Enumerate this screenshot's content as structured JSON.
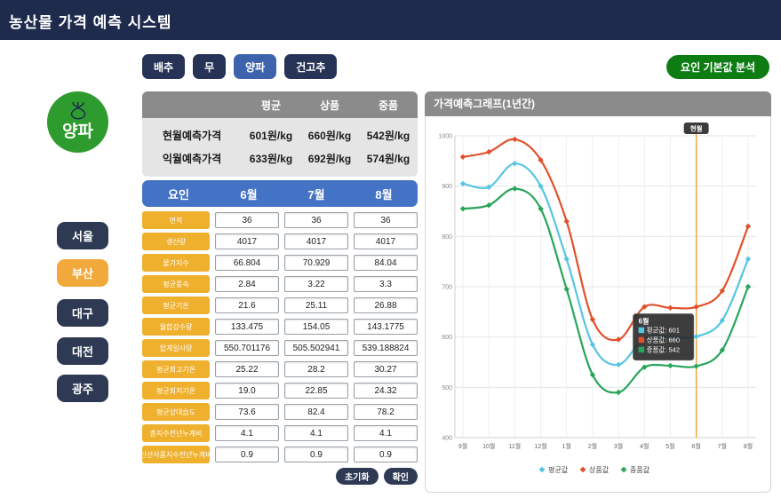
{
  "header": {
    "title": "농산물 가격 예측 시스템"
  },
  "tabs": [
    {
      "label": "배추",
      "active": false
    },
    {
      "label": "무",
      "active": false
    },
    {
      "label": "양파",
      "active": true
    },
    {
      "label": "건고추",
      "active": false
    }
  ],
  "analysis_button": {
    "label": "요인 기본값 분석"
  },
  "product": {
    "name": "양파"
  },
  "cities": [
    {
      "label": "서울",
      "active": false
    },
    {
      "label": "부산",
      "active": true
    },
    {
      "label": "대구",
      "active": false
    },
    {
      "label": "대전",
      "active": false
    },
    {
      "label": "광주",
      "active": false
    }
  ],
  "price_table": {
    "columns": [
      "평균",
      "상품",
      "중품"
    ],
    "rows": [
      {
        "label": "현월예측가격",
        "values": [
          "601원/kg",
          "660원/kg",
          "542원/kg"
        ]
      },
      {
        "label": "익월예측가격",
        "values": [
          "633원/kg",
          "692원/kg",
          "574원/kg"
        ]
      }
    ]
  },
  "factor_table": {
    "header": [
      "요인",
      "6월",
      "7월",
      "8월"
    ],
    "rows": [
      {
        "label": "면적",
        "values": [
          "36",
          "36",
          "36"
        ]
      },
      {
        "label": "생산량",
        "values": [
          "4017",
          "4017",
          "4017"
        ]
      },
      {
        "label": "물가지수",
        "values": [
          "66.804",
          "70.929",
          "84.04"
        ]
      },
      {
        "label": "평균풍속",
        "values": [
          "2.84",
          "3.22",
          "3.3"
        ]
      },
      {
        "label": "평균기온",
        "values": [
          "21.6",
          "25.11",
          "26.88"
        ]
      },
      {
        "label": "월합강수량",
        "values": [
          "133.475",
          "154.05",
          "143.1775"
        ]
      },
      {
        "label": "합계일사량",
        "values": [
          "550.701176",
          "505.502941",
          "539.188824"
        ]
      },
      {
        "label": "평균최고기온",
        "values": [
          "25.22",
          "28.2",
          "30.27"
        ]
      },
      {
        "label": "평균최저기온",
        "values": [
          "19.0",
          "22.85",
          "24.32"
        ]
      },
      {
        "label": "평균상대습도",
        "values": [
          "73.6",
          "82.4",
          "78.2"
        ]
      },
      {
        "label": "총지수전년누계비",
        "values": [
          "4.1",
          "4.1",
          "4.1"
        ]
      },
      {
        "label": "신선식품지수전년누계비",
        "values": [
          "0.9",
          "0.9",
          "0.9"
        ]
      }
    ],
    "buttons": {
      "reset": "초기화",
      "confirm": "확인"
    }
  },
  "chart_panel": {
    "title": "가격예측그래프(1년간)"
  },
  "chart_data": {
    "type": "line",
    "categories": [
      "9월",
      "10월",
      "11월",
      "12월",
      "1월",
      "2월",
      "3월",
      "4월",
      "5월",
      "6월",
      "7월",
      "8월"
    ],
    "series": [
      {
        "name": "평균값",
        "color": "#56c5e3",
        "values": [
          905,
          898,
          945,
          900,
          755,
          585,
          545,
          598,
          600,
          601,
          633,
          755
        ]
      },
      {
        "name": "상품값",
        "color": "#e0512b",
        "values": [
          958,
          968,
          993,
          952,
          830,
          635,
          595,
          660,
          658,
          660,
          692,
          820
        ]
      },
      {
        "name": "중품값",
        "color": "#28a55a",
        "values": [
          855,
          862,
          895,
          855,
          695,
          525,
          490,
          540,
          543,
          542,
          574,
          700
        ]
      }
    ],
    "ylim": [
      400,
      1000
    ],
    "ytick_step": 100,
    "grid": true,
    "legend_position": "bottom",
    "current_month": {
      "category": "6월",
      "label": "현월",
      "line_color": "#eda52f"
    },
    "tooltip": {
      "title": "6월",
      "rows": [
        {
          "label": "평균값",
          "value": 601
        },
        {
          "label": "상품값",
          "value": 660
        },
        {
          "label": "중품값",
          "value": 542
        }
      ]
    }
  },
  "colors": {
    "header_navy": "#1e2b4d",
    "tab_navy": "#273356",
    "tab_active_blue": "#3e63ad",
    "analysis_green": "#0d7d13",
    "logo_green": "#2e9b2e",
    "city_active_yellow": "#f2a93b",
    "table_header_gray": "#8b8b8b",
    "factor_header_blue": "#4472c4",
    "factor_label_yellow": "#efb02e"
  }
}
